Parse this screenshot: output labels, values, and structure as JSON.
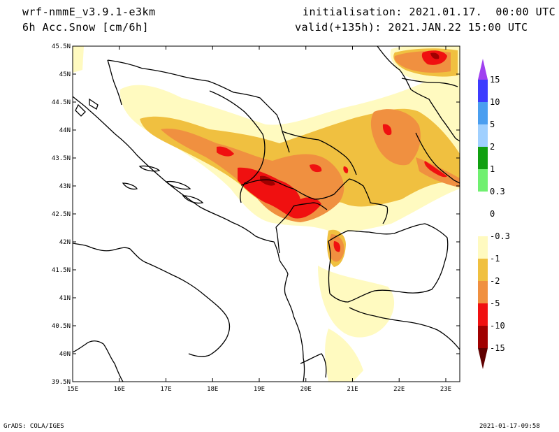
{
  "header": {
    "model": "wrf-nmmE_v3.9.1-e3km",
    "field": "6h Acc.Snow [cm/6h]",
    "init": "initialisation: 2021.01.17.  00:00 UTC",
    "valid": "valid(+135h): 2021.JAN.22 15:00 UTC"
  },
  "footer": {
    "software": "GrADS: COLA/IGES",
    "timestamp": "2021-01-17-09:58"
  },
  "map": {
    "lon_ticks": [
      "15E",
      "16E",
      "17E",
      "18E",
      "19E",
      "20E",
      "21E",
      "22E",
      "23E"
    ],
    "lat_ticks": [
      "45.5N",
      "45N",
      "44.5N",
      "44N",
      "43.5N",
      "43N",
      "42.5N",
      "42N",
      "41.5N",
      "41N",
      "40.5N",
      "40N",
      "39.5N"
    ],
    "lon_range": [
      15,
      23.3
    ],
    "lat_range": [
      39.5,
      45.5
    ]
  },
  "colorbar": {
    "labels": [
      "15",
      "10",
      "5",
      "2",
      "1",
      "0.3",
      "0",
      "-0.3",
      "-1",
      "-2",
      "-5",
      "-10",
      "-15"
    ],
    "colors": [
      "#3c3cff",
      "#4a9ef0",
      "#a0d0ff",
      "#10a010",
      "#70f070",
      "#ffffff",
      "#ffffff",
      "#fffac0",
      "#f0c040",
      "#f09040",
      "#f01010",
      "#a00000"
    ],
    "top_arrow_color": "#a040f0",
    "bottom_arrow_color": "#600000"
  }
}
